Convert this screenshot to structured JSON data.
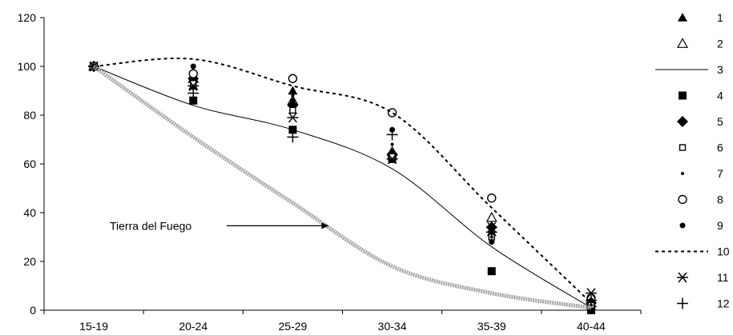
{
  "chart_data": {
    "type": "line",
    "title": "",
    "xlabel": "",
    "ylabel": "",
    "categories": [
      "15-19",
      "20-24",
      "25-29",
      "30-34",
      "35-39",
      "40-44"
    ],
    "ylim": [
      0,
      120
    ],
    "yticks": [
      0,
      20,
      40,
      60,
      80,
      100,
      120
    ],
    "grid": false,
    "legend_position": "right",
    "annotation": {
      "text": "Tierra del Fuego",
      "series": "Tierra del Fuego",
      "points_at_category": "25-29"
    },
    "series": [
      {
        "name": "1",
        "marker": "triangle-filled",
        "values": [
          100,
          92,
          90,
          64,
          32,
          2
        ]
      },
      {
        "name": "2",
        "marker": "triangle-open",
        "values": [
          100,
          95,
          86,
          65,
          38,
          3
        ]
      },
      {
        "name": "3",
        "style": "solid-line",
        "values": [
          100,
          84,
          74,
          58,
          26,
          1
        ]
      },
      {
        "name": "4",
        "marker": "square-filled",
        "values": [
          100,
          86,
          74,
          62,
          16,
          0
        ]
      },
      {
        "name": "5",
        "marker": "diamond-filled",
        "values": [
          100,
          95,
          84,
          64,
          34,
          3
        ]
      },
      {
        "name": "6",
        "marker": "square-open",
        "values": [
          100,
          93,
          82,
          63,
          30,
          2
        ]
      },
      {
        "name": "7",
        "marker": "small-dot",
        "values": [
          100,
          98,
          88,
          68,
          30,
          2
        ]
      },
      {
        "name": "8",
        "marker": "circle-open",
        "values": [
          100,
          97,
          95,
          81,
          46,
          5
        ]
      },
      {
        "name": "9",
        "marker": "circle-filled",
        "values": [
          100,
          100,
          86,
          74,
          28,
          4
        ]
      },
      {
        "name": "10",
        "style": "dashed-line",
        "values": [
          100,
          103,
          92,
          81,
          42,
          3
        ]
      },
      {
        "name": "11",
        "marker": "asterisk",
        "values": [
          100,
          92,
          79,
          62,
          34,
          7
        ]
      },
      {
        "name": "12",
        "marker": "plus",
        "values": [
          100,
          89,
          71,
          72,
          32,
          4
        ]
      },
      {
        "name": "Tierra del Fuego",
        "style": "thick-gray-line",
        "values": [
          100,
          71,
          44,
          18,
          7,
          1
        ]
      }
    ]
  },
  "colors": {
    "black": "#000000",
    "gray": "#a6a6a6"
  }
}
